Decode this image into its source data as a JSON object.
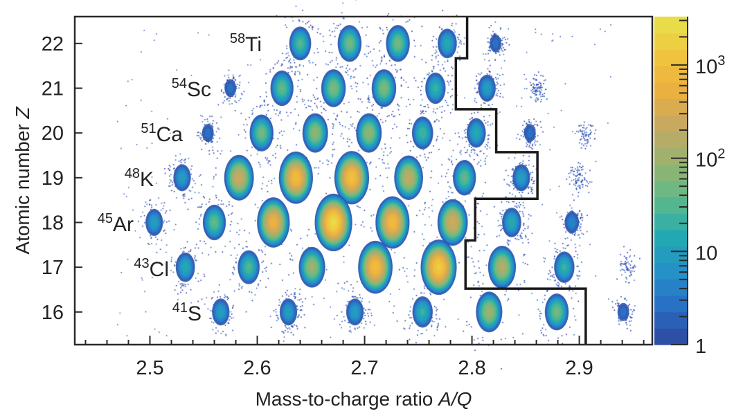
{
  "chart_data": {
    "type": "heatmap",
    "xlabel": {
      "text": "Mass-to-charge ratio ",
      "italic": "A/Q"
    },
    "ylabel": {
      "text": "Atomic number ",
      "italic": "Z"
    },
    "xlim": [
      2.43,
      2.968
    ],
    "ylim": [
      15.27,
      22.6
    ],
    "x_ticks": [
      "2.5",
      "2.6",
      "2.7",
      "2.8",
      "2.9"
    ],
    "x_tick_values": [
      2.5,
      2.6,
      2.7,
      2.8,
      2.9
    ],
    "y_ticks": [
      "16",
      "17",
      "18",
      "19",
      "20",
      "21",
      "22"
    ],
    "y_tick_values": [
      16,
      17,
      18,
      19,
      20,
      21,
      22
    ],
    "grid": false,
    "colorbar": {
      "scale": "log",
      "range": [
        1,
        3300
      ],
      "ticks": [
        {
          "value": 1,
          "base": "1",
          "exp": ""
        },
        {
          "value": 10,
          "base": "10",
          "exp": ""
        },
        {
          "value": 100,
          "base": "10",
          "exp": "2"
        },
        {
          "value": 1000,
          "base": "10",
          "exp": "3"
        }
      ],
      "colors": [
        "#2e479c",
        "#2a6cc4",
        "#2490c8",
        "#22aab0",
        "#5fb98a",
        "#98b36f",
        "#c6a862",
        "#ebb03f",
        "#f0c63e",
        "#e6e24c"
      ]
    },
    "annotations": [
      {
        "mass": "58",
        "element": "Ti",
        "z": 22
      },
      {
        "mass": "54",
        "element": "Sc",
        "z": 21
      },
      {
        "mass": "51",
        "element": "Ca",
        "z": 20
      },
      {
        "mass": "48",
        "element": "K",
        "z": 19
      },
      {
        "mass": "45",
        "element": "Ar",
        "z": 18
      },
      {
        "mass": "43",
        "element": "Cl",
        "z": 17
      },
      {
        "mass": "41",
        "element": "S",
        "z": 16
      }
    ],
    "gate": [
      [
        2.7955,
        22.6
      ],
      [
        2.7955,
        21.67
      ],
      [
        2.785,
        21.67
      ],
      [
        2.785,
        20.53
      ],
      [
        2.8226,
        20.53
      ],
      [
        2.8226,
        19.57
      ],
      [
        2.861,
        19.57
      ],
      [
        2.861,
        18.53
      ],
      [
        2.803,
        18.53
      ],
      [
        2.803,
        17.6
      ],
      [
        2.794,
        17.6
      ],
      [
        2.794,
        16.52
      ],
      [
        2.906,
        16.52
      ],
      [
        2.906,
        15.27
      ]
    ],
    "clusters": [
      {
        "aq": 2.64,
        "z": 22,
        "counts": 30
      },
      {
        "aq": 2.686,
        "z": 22,
        "counts": 50
      },
      {
        "aq": 2.731,
        "z": 22,
        "counts": 50
      },
      {
        "aq": 2.777,
        "z": 22,
        "counts": 15
      },
      {
        "aq": 2.822,
        "z": 22,
        "counts": 3
      },
      {
        "aq": 2.575,
        "z": 21,
        "counts": 3
      },
      {
        "aq": 2.623,
        "z": 21,
        "counts": 40
      },
      {
        "aq": 2.671,
        "z": 21,
        "counts": 60
      },
      {
        "aq": 2.718,
        "z": 21,
        "counts": 60
      },
      {
        "aq": 2.766,
        "z": 21,
        "counts": 20
      },
      {
        "aq": 2.814,
        "z": 21,
        "counts": 10
      },
      {
        "aq": 2.861,
        "z": 21,
        "counts": 2
      },
      {
        "aq": 2.554,
        "z": 20,
        "counts": 3
      },
      {
        "aq": 2.604,
        "z": 20,
        "counts": 50
      },
      {
        "aq": 2.654,
        "z": 20,
        "counts": 80
      },
      {
        "aq": 2.704,
        "z": 20,
        "counts": 80
      },
      {
        "aq": 2.754,
        "z": 20,
        "counts": 25
      },
      {
        "aq": 2.804,
        "z": 20,
        "counts": 15
      },
      {
        "aq": 2.854,
        "z": 20,
        "counts": 3
      },
      {
        "aq": 2.904,
        "z": 20,
        "counts": 1
      },
      {
        "aq": 2.53,
        "z": 19,
        "counts": 10
      },
      {
        "aq": 2.583,
        "z": 19,
        "counts": 250
      },
      {
        "aq": 2.636,
        "z": 19,
        "counts": 900
      },
      {
        "aq": 2.688,
        "z": 19,
        "counts": 1100
      },
      {
        "aq": 2.741,
        "z": 19,
        "counts": 200
      },
      {
        "aq": 2.793,
        "z": 19,
        "counts": 40
      },
      {
        "aq": 2.846,
        "z": 19,
        "counts": 10
      },
      {
        "aq": 2.899,
        "z": 19,
        "counts": 2
      },
      {
        "aq": 2.504,
        "z": 18,
        "counts": 10
      },
      {
        "aq": 2.56,
        "z": 18,
        "counts": 40
      },
      {
        "aq": 2.615,
        "z": 18,
        "counts": 600
      },
      {
        "aq": 2.671,
        "z": 18,
        "counts": 2500
      },
      {
        "aq": 2.726,
        "z": 18,
        "counts": 900
      },
      {
        "aq": 2.782,
        "z": 18,
        "counts": 300
      },
      {
        "aq": 2.837,
        "z": 18,
        "counts": 15
      },
      {
        "aq": 2.893,
        "z": 18,
        "counts": 5
      },
      {
        "aq": 2.533,
        "z": 17,
        "counts": 15
      },
      {
        "aq": 2.592,
        "z": 17,
        "counts": 30
      },
      {
        "aq": 2.651,
        "z": 17,
        "counts": 100
      },
      {
        "aq": 2.71,
        "z": 17,
        "counts": 1000
      },
      {
        "aq": 2.769,
        "z": 17,
        "counts": 1600
      },
      {
        "aq": 2.828,
        "z": 17,
        "counts": 150
      },
      {
        "aq": 2.886,
        "z": 17,
        "counts": 20
      },
      {
        "aq": 2.945,
        "z": 17,
        "counts": 1
      },
      {
        "aq": 2.566,
        "z": 16,
        "counts": 10
      },
      {
        "aq": 2.629,
        "z": 16,
        "counts": 10
      },
      {
        "aq": 2.691,
        "z": 16,
        "counts": 10
      },
      {
        "aq": 2.754,
        "z": 16,
        "counts": 20
      },
      {
        "aq": 2.816,
        "z": 16,
        "counts": 100
      },
      {
        "aq": 2.879,
        "z": 16,
        "counts": 50
      },
      {
        "aq": 2.941,
        "z": 16,
        "counts": 3
      }
    ]
  }
}
